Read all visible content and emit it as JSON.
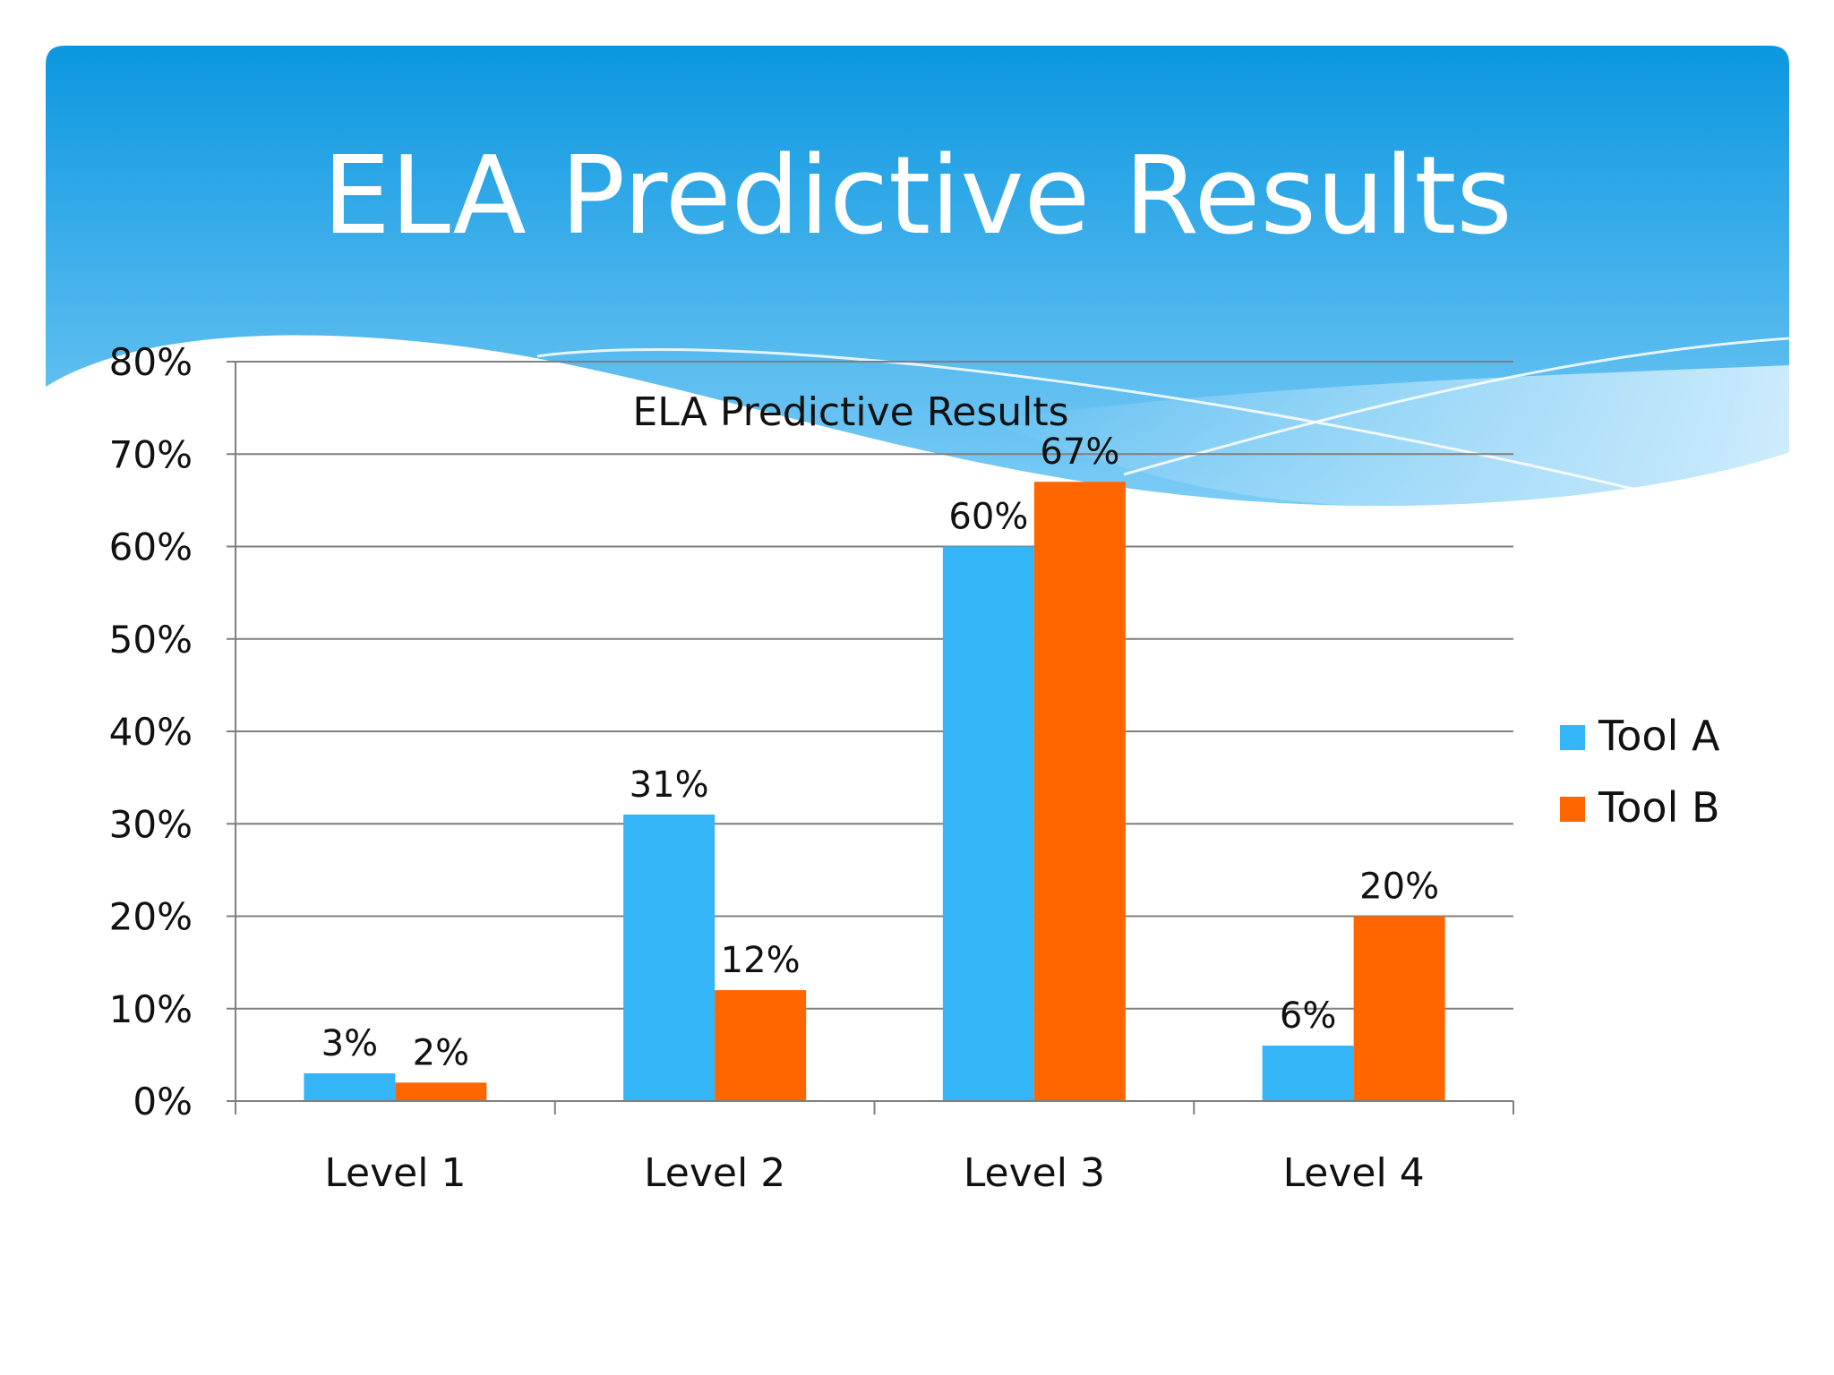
{
  "slide": {
    "title": "ELA Predictive Results"
  },
  "colors": {
    "header_top": "#0b97e0",
    "header_bottom": "#7cccf6",
    "tool_a": "#33b5f8",
    "tool_b": "#ff6600",
    "grid": "#7f7f7f"
  },
  "chart_data": {
    "type": "bar",
    "title": "ELA Predictive Results",
    "categories": [
      "Level 1",
      "Level 2",
      "Level 3",
      "Level 4"
    ],
    "series": [
      {
        "name": "Tool A",
        "values": [
          3,
          31,
          60,
          6
        ],
        "labels": [
          "3%",
          "31%",
          "60%",
          "6%"
        ]
      },
      {
        "name": "Tool B",
        "values": [
          2,
          12,
          67,
          20
        ],
        "labels": [
          "2%",
          "12%",
          "67%",
          "20%"
        ]
      }
    ],
    "y_ticks": [
      0,
      10,
      20,
      30,
      40,
      50,
      60,
      70,
      80
    ],
    "y_tick_labels": [
      "0%",
      "10%",
      "20%",
      "30%",
      "40%",
      "50%",
      "60%",
      "70%",
      "80%"
    ],
    "ylim": [
      0,
      80
    ],
    "xlabel": "",
    "ylabel": "",
    "grid": true,
    "legend": "right"
  }
}
